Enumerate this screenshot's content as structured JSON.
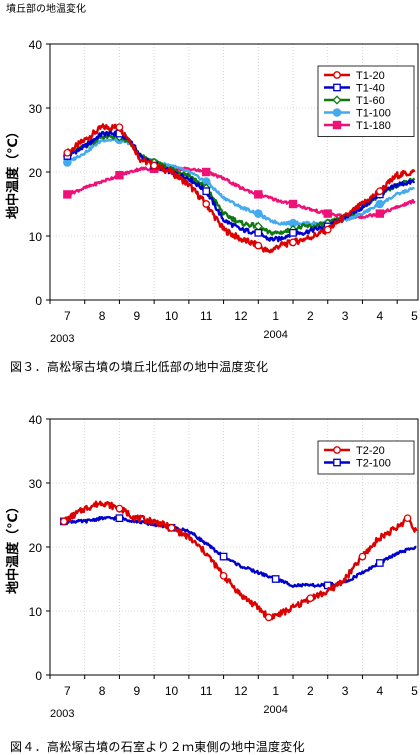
{
  "page": {
    "section_title": "墳丘部の地温変化"
  },
  "captions": [
    "図３．高松塚古墳の墳丘北低部の地中温度変化",
    "図４．高松塚古墳の石室より２ｍ東側の地中温度変化"
  ],
  "chart_data": [
    {
      "type": "line",
      "ylabel": "地中温度（℃）",
      "ylim": [
        0,
        40
      ],
      "yticks": [
        0,
        10,
        20,
        30,
        40
      ],
      "x_ticks": [
        "7",
        "8",
        "9",
        "10",
        "11",
        "12",
        "1",
        "2",
        "3",
        "4",
        "5"
      ],
      "x_range_months": [
        7,
        17.6
      ],
      "year_labels": [
        "2003",
        "2004"
      ],
      "grid": true,
      "legend_position": "top-right",
      "series": [
        {
          "name": "T1-20",
          "color": "#dd0000",
          "marker": "circle-open",
          "x": [
            7.5,
            8.0,
            8.5,
            9.0,
            9.3,
            9.6,
            10.0,
            10.5,
            11.0,
            11.5,
            12.0,
            12.5,
            13.0,
            13.3,
            13.6,
            14.0,
            14.3,
            14.6,
            15.0,
            15.5,
            16.0,
            16.5,
            17.0,
            17.5
          ],
          "y": [
            23,
            25,
            27,
            27,
            25,
            22,
            21,
            20,
            18,
            15,
            11,
            9.5,
            8.5,
            7.5,
            8.5,
            9,
            9.5,
            10,
            11,
            13,
            15,
            17,
            19.5,
            20
          ]
        },
        {
          "name": "T1-40",
          "color": "#0000cc",
          "marker": "square-open",
          "x": [
            7.5,
            8.0,
            8.5,
            9.0,
            9.3,
            9.6,
            10.0,
            10.5,
            11.0,
            11.5,
            12.0,
            12.5,
            13.0,
            13.3,
            13.6,
            14.0,
            14.3,
            14.6,
            15.0,
            15.5,
            16.0,
            16.5,
            17.0,
            17.5
          ],
          "y": [
            22.5,
            24,
            26,
            26,
            25,
            22.5,
            21,
            20,
            19,
            17,
            12.5,
            11,
            10.5,
            9.5,
            9.5,
            10.5,
            10.5,
            11,
            11.5,
            13,
            14.5,
            16.5,
            18,
            18.5
          ]
        },
        {
          "name": "T1-60",
          "color": "#117711",
          "marker": "diamond-open",
          "x": [
            7.5,
            8.0,
            8.5,
            9.0,
            9.3,
            9.6,
            10.0,
            10.5,
            11.0,
            11.5,
            12.0,
            12.5,
            13.0,
            13.3,
            13.6,
            14.0,
            14.3,
            14.6,
            15.0,
            15.5,
            16.0,
            16.5,
            17.0,
            17.5
          ],
          "y": [
            22.5,
            24,
            25.5,
            25.5,
            24.5,
            22.5,
            21.5,
            20.5,
            19.5,
            17.5,
            13.5,
            12,
            11.5,
            10.5,
            10.5,
            11,
            11.5,
            11.5,
            12,
            13,
            14.5,
            16.5,
            18,
            19
          ]
        },
        {
          "name": "T1-100",
          "color": "#44aaee",
          "marker": "circle-filled",
          "x": [
            7.5,
            8.0,
            8.5,
            9.0,
            9.3,
            9.6,
            10.0,
            10.5,
            11.0,
            11.5,
            12.0,
            12.5,
            13.0,
            13.3,
            13.6,
            14.0,
            14.3,
            14.6,
            15.0,
            15.5,
            16.0,
            16.5,
            17.0,
            17.5
          ],
          "y": [
            21.5,
            23,
            25,
            25,
            24.5,
            22.5,
            21.5,
            21,
            20,
            18.5,
            16,
            14.5,
            13.5,
            12.5,
            12,
            12,
            12,
            12,
            12,
            12.5,
            13.5,
            15,
            16.5,
            17.5
          ]
        },
        {
          "name": "T1-180",
          "color": "#ee1177",
          "marker": "square-filled",
          "x": [
            7.5,
            8.0,
            8.5,
            9.0,
            9.3,
            9.6,
            10.0,
            10.5,
            11.0,
            11.5,
            12.0,
            12.5,
            13.0,
            13.3,
            13.6,
            14.0,
            14.3,
            14.6,
            15.0,
            15.5,
            16.0,
            16.5,
            17.0,
            17.5
          ],
          "y": [
            16.5,
            17.5,
            18.5,
            19.5,
            20,
            20.5,
            20.5,
            20.5,
            20.5,
            20,
            19,
            17.5,
            16.5,
            16,
            15.5,
            15,
            14.5,
            14,
            13.5,
            13,
            13,
            13.5,
            14.5,
            15.5
          ]
        }
      ]
    },
    {
      "type": "line",
      "ylabel": "地中温度（℃）",
      "ylim": [
        0,
        40
      ],
      "yticks": [
        0,
        10,
        20,
        30,
        40
      ],
      "x_ticks": [
        "7",
        "8",
        "9",
        "10",
        "11",
        "12",
        "1",
        "2",
        "3",
        "4",
        "5"
      ],
      "x_range_months": [
        7,
        17.6
      ],
      "year_labels": [
        "2003",
        "2004"
      ],
      "grid": true,
      "legend_position": "top-right",
      "series": [
        {
          "name": "T2-20",
          "color": "#dd0000",
          "marker": "circle-open",
          "x": [
            7.4,
            8.0,
            8.5,
            9.0,
            9.5,
            10.0,
            10.5,
            11.0,
            11.5,
            12.0,
            12.5,
            13.0,
            13.3,
            13.6,
            14.0,
            14.5,
            15.0,
            15.5,
            16.0,
            16.5,
            17.0,
            17.3,
            17.55
          ],
          "y": [
            24,
            26,
            27,
            26,
            24.5,
            24,
            23,
            21.5,
            19,
            15.5,
            12.5,
            10.5,
            9,
            9.5,
            10.5,
            12,
            13,
            15,
            18.5,
            21.5,
            23,
            24.5,
            22.5
          ]
        },
        {
          "name": "T2-100",
          "color": "#0000cc",
          "marker": "square-open",
          "x": [
            7.4,
            8.0,
            8.5,
            9.0,
            9.5,
            10.0,
            10.5,
            11.0,
            11.5,
            12.0,
            12.5,
            13.0,
            13.5,
            14.0,
            14.5,
            15.0,
            15.5,
            16.0,
            16.5,
            17.0,
            17.55
          ],
          "y": [
            24,
            24,
            24.5,
            24.5,
            24,
            23.5,
            23,
            22.5,
            20.5,
            18.5,
            17,
            16,
            15,
            14,
            14,
            14,
            14.5,
            16,
            17.5,
            19,
            20
          ]
        }
      ]
    }
  ]
}
